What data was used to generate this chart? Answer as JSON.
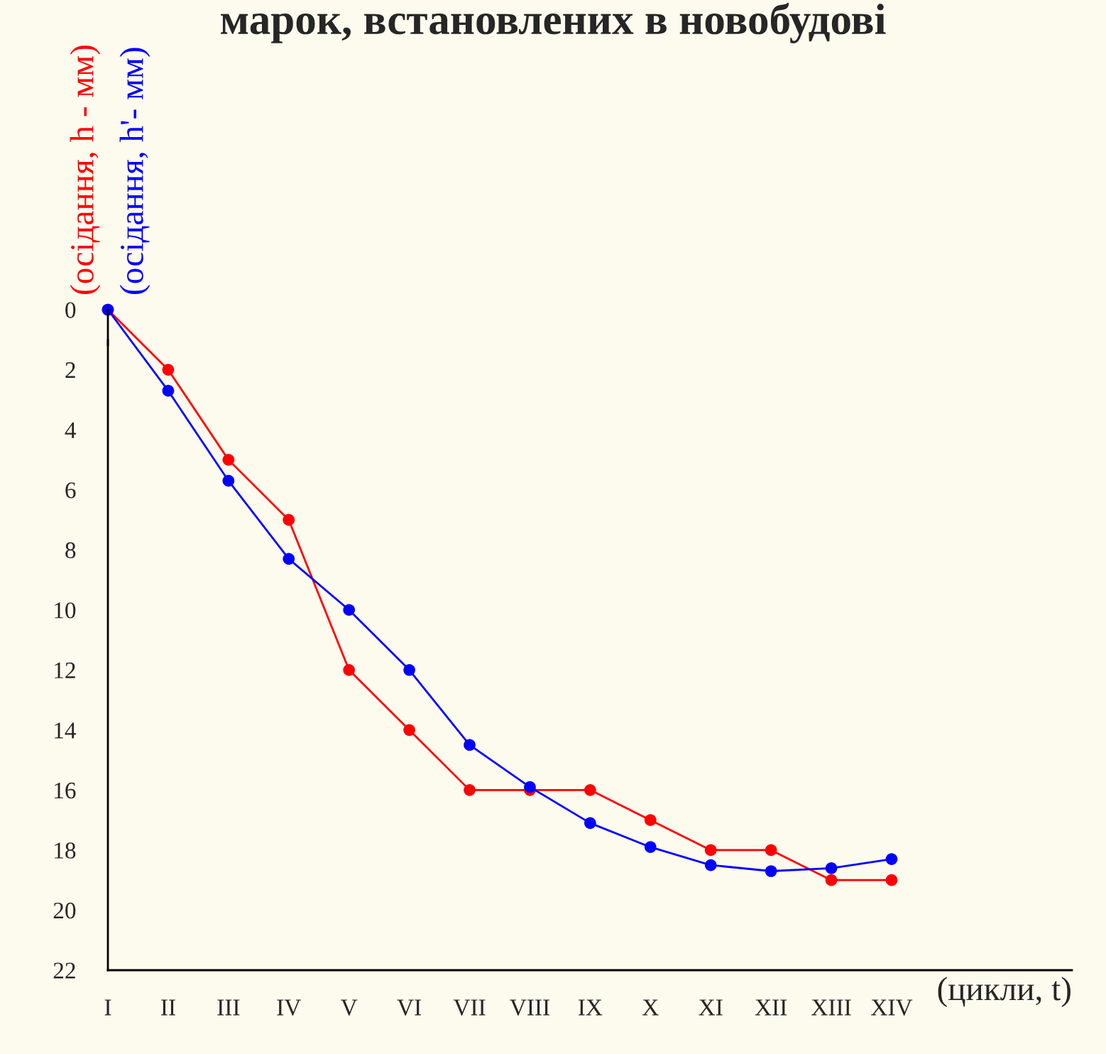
{
  "chart_data": {
    "type": "line",
    "title": "марок, встановлених в новобудові",
    "xlabel": "(цикли, t)",
    "categories": [
      "I",
      "II",
      "III",
      "IV",
      "V",
      "VI",
      "VII",
      "VIII",
      "IX",
      "X",
      "XI",
      "XII",
      "XIII",
      "XIV"
    ],
    "series": [
      {
        "name": "(осідання, h - мм)",
        "color": "#ff0000",
        "values": [
          0,
          2,
          5,
          7,
          12,
          14,
          16,
          16,
          16,
          17,
          18,
          18,
          19,
          19
        ]
      },
      {
        "name": "(осідання, h'- мм)",
        "color": "#0000ff",
        "values": [
          0,
          2.7,
          5.7,
          8.3,
          10,
          12,
          14.5,
          15.9,
          17.1,
          17.9,
          18.5,
          18.7,
          18.6,
          18.3
        ]
      }
    ],
    "ylim": [
      22,
      0
    ],
    "yticks": [
      0,
      2,
      4,
      6,
      8,
      10,
      12,
      14,
      16,
      18,
      20,
      22
    ],
    "marker": "circle",
    "line_style": "solid",
    "grid": false,
    "legend": false
  }
}
